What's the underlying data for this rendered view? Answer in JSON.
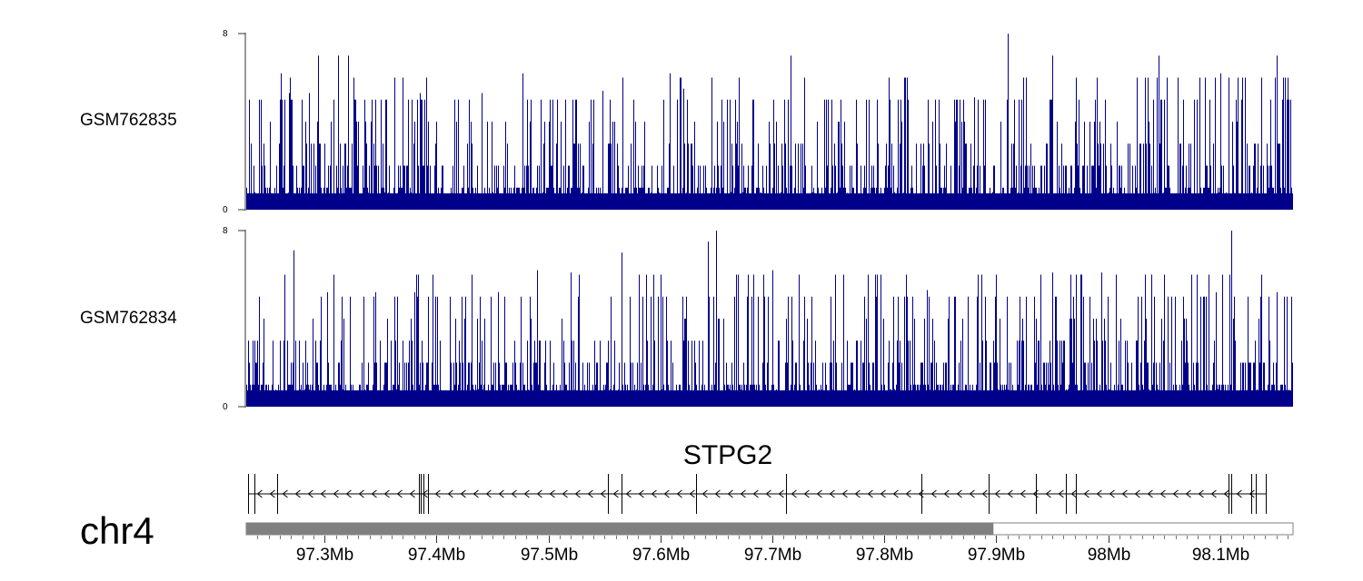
{
  "chart_data": {
    "type": "genome_track",
    "chromosome": "chr4",
    "x_range_mb": [
      97.23,
      98.165
    ],
    "tracks": [
      {
        "name": "GSM762835",
        "type": "histogram",
        "ylim": [
          0,
          8
        ],
        "y_ticks": [
          "8",
          "0"
        ],
        "color": "#00008b",
        "peaks": [
          {
            "pos": 97.294,
            "value": 7.0
          },
          {
            "pos": 97.312,
            "value": 7.0
          },
          {
            "pos": 97.321,
            "value": 7.0
          },
          {
            "pos": 97.2605,
            "value": 6.2
          },
          {
            "pos": 97.268,
            "value": 5.3
          },
          {
            "pos": 97.286,
            "value": 5.3
          },
          {
            "pos": 97.385,
            "value": 5.3
          },
          {
            "pos": 97.44,
            "value": 5.3
          },
          {
            "pos": 97.477,
            "value": 6.2
          },
          {
            "pos": 97.548,
            "value": 5.4
          },
          {
            "pos": 97.608,
            "value": 6.2
          },
          {
            "pos": 97.62,
            "value": 5.5
          },
          {
            "pos": 97.716,
            "value": 7.0
          },
          {
            "pos": 97.775,
            "value": 5.0
          },
          {
            "pos": 97.82,
            "value": 6.0
          },
          {
            "pos": 97.88,
            "value": 5.1
          },
          {
            "pos": 97.91,
            "value": 8.0
          },
          {
            "pos": 97.95,
            "value": 7.0
          },
          {
            "pos": 97.99,
            "value": 6.0
          },
          {
            "pos": 98.045,
            "value": 7.0
          },
          {
            "pos": 98.1,
            "value": 6.2
          },
          {
            "pos": 98.15,
            "value": 7.0
          },
          {
            "pos": 98.16,
            "value": 6.0
          }
        ]
      },
      {
        "name": "GSM762834",
        "type": "histogram",
        "ylim": [
          0,
          8
        ],
        "y_ticks": [
          "8",
          "0"
        ],
        "color": "#00008b",
        "peaks": [
          {
            "pos": 97.272,
            "value": 7.1
          },
          {
            "pos": 97.302,
            "value": 5.2
          },
          {
            "pos": 97.345,
            "value": 5.2
          },
          {
            "pos": 97.38,
            "value": 5.2
          },
          {
            "pos": 97.455,
            "value": 5.2
          },
          {
            "pos": 97.49,
            "value": 6.2
          },
          {
            "pos": 97.52,
            "value": 6.1
          },
          {
            "pos": 97.565,
            "value": 7.0
          },
          {
            "pos": 97.6,
            "value": 6.0
          },
          {
            "pos": 97.642,
            "value": 7.5
          },
          {
            "pos": 97.65,
            "value": 8.0
          },
          {
            "pos": 97.7,
            "value": 6.2
          },
          {
            "pos": 97.785,
            "value": 6.0
          },
          {
            "pos": 97.838,
            "value": 5.3
          },
          {
            "pos": 97.887,
            "value": 6.0
          },
          {
            "pos": 97.95,
            "value": 6.1
          },
          {
            "pos": 97.994,
            "value": 6.1
          },
          {
            "pos": 98.05,
            "value": 6.0
          },
          {
            "pos": 98.096,
            "value": 5.2
          },
          {
            "pos": 98.11,
            "value": 8.0
          },
          {
            "pos": 98.15,
            "value": 5.2
          }
        ]
      }
    ],
    "gene": {
      "name": "STPG2",
      "strand": "-",
      "exons_mb": [
        97.232,
        97.237,
        97.258,
        97.384,
        97.386,
        97.388,
        97.392,
        97.553,
        97.565,
        97.632,
        97.712,
        97.833,
        97.893,
        97.935,
        97.962,
        97.971,
        98.107,
        98.11,
        98.128,
        98.132,
        98.141
      ]
    },
    "ideogram": {
      "highlight_range_mb": [
        97.23,
        97.897
      ]
    },
    "x_axis": {
      "ticks_mb": [
        97.3,
        97.4,
        97.5,
        97.6,
        97.7,
        97.8,
        97.9,
        98.0,
        98.1
      ],
      "tick_labels": [
        "97.3Mb",
        "97.4Mb",
        "97.5Mb",
        "97.6Mb",
        "97.7Mb",
        "97.8Mb",
        "97.9Mb",
        "98Mb",
        "98.1Mb"
      ]
    }
  }
}
